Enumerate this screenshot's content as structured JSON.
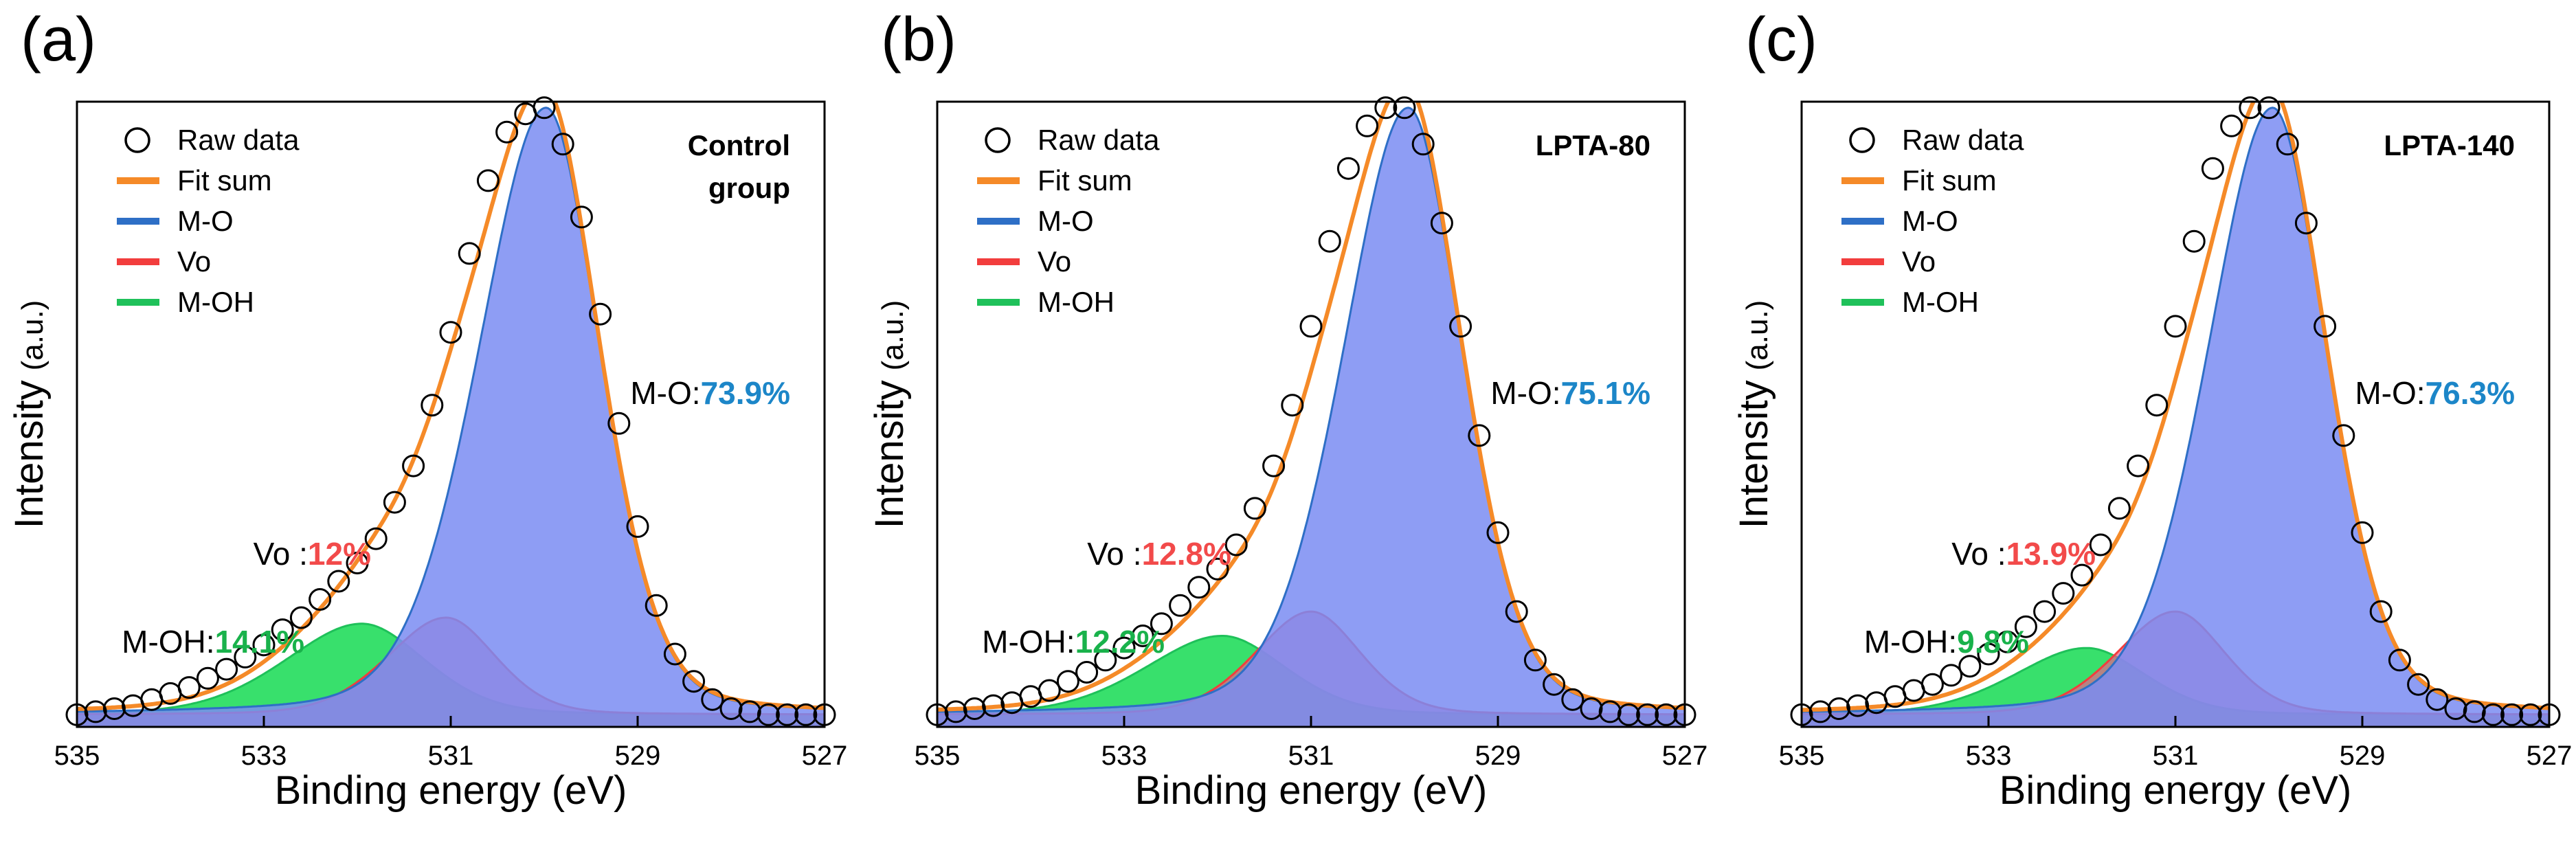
{
  "figure": {
    "panels": [
      {
        "id": "a",
        "panel_label": "(a)",
        "sample_label_lines": [
          "Control",
          "group"
        ]
      },
      {
        "id": "b",
        "panel_label": "(b)",
        "sample_label_lines": [
          "LPTA-80"
        ]
      },
      {
        "id": "c",
        "panel_label": "(c)",
        "sample_label_lines": [
          "LPTA-140"
        ]
      }
    ]
  },
  "chart_data": [
    {
      "type": "line",
      "title": "Control group",
      "xlabel": "Binding energy (eV)",
      "ylabel_main": "Intensity",
      "ylabel_unit": "(a.u.)",
      "xlim": [
        535,
        527
      ],
      "ylim": [
        0,
        1.03
      ],
      "x_ticks": [
        "535",
        "533",
        "531",
        "529",
        "527"
      ],
      "legend": [
        "Raw data",
        "Fit sum",
        "M-O",
        "Vo",
        "M-OH"
      ],
      "colors": {
        "raw": "#000000",
        "fit": "#f58a28",
        "mo_line": "#2e6fc6",
        "mo_fill": "#7a8cf2",
        "vo_line": "#f23d3d",
        "vo_fill": "#e8608a",
        "moh_line": "#1fc15a",
        "moh_fill": "#22dd5c",
        "mo_pct": "#1c86c8",
        "vo_pct": "#f24a4a",
        "moh_pct": "#19b24b"
      },
      "annotations": [
        {
          "name": "M-O",
          "prefix": "M-O:",
          "value": "73.9%"
        },
        {
          "name": "Vo",
          "prefix": "Vo :",
          "value": "12%"
        },
        {
          "name": "M-OH",
          "prefix": "M-OH:",
          "value": "14.1%"
        }
      ],
      "peaks": [
        {
          "name": "M-O",
          "center": 529.98,
          "height": 1.0,
          "width_low_be": 0.6,
          "width_high_be": 0.75
        },
        {
          "name": "Vo",
          "center": 531.05,
          "height": 0.16,
          "width_low_be": 0.55,
          "width_high_be": 0.65
        },
        {
          "name": "M-OH",
          "center": 531.95,
          "height": 0.15,
          "width_low_be": 0.7,
          "width_high_be": 0.85
        }
      ],
      "baseline": 0.02,
      "raw_x": [
        535.0,
        534.8,
        534.6,
        534.4,
        534.2,
        534.0,
        533.8,
        533.6,
        533.4,
        533.2,
        533.0,
        532.8,
        532.6,
        532.4,
        532.2,
        532.0,
        531.8,
        531.6,
        531.4,
        531.2,
        531.0,
        530.8,
        530.6,
        530.4,
        530.2,
        530.0,
        529.8,
        529.6,
        529.4,
        529.2,
        529.0,
        528.8,
        528.6,
        528.4,
        528.2,
        528.0,
        527.8,
        527.6,
        527.4,
        527.2,
        527.0
      ],
      "raw_y": [
        0.02,
        0.025,
        0.03,
        0.035,
        0.045,
        0.055,
        0.065,
        0.08,
        0.095,
        0.115,
        0.135,
        0.16,
        0.18,
        0.21,
        0.24,
        0.27,
        0.31,
        0.37,
        0.43,
        0.53,
        0.65,
        0.78,
        0.9,
        0.98,
        1.01,
        1.02,
        0.96,
        0.84,
        0.68,
        0.5,
        0.33,
        0.2,
        0.12,
        0.075,
        0.045,
        0.03,
        0.025,
        0.02,
        0.02,
        0.02,
        0.02
      ]
    },
    {
      "type": "line",
      "title": "LPTA-80",
      "xlabel": "Binding energy (eV)",
      "ylabel_main": "Intensity",
      "ylabel_unit": "(a.u.)",
      "xlim": [
        535,
        527
      ],
      "ylim": [
        0,
        1.03
      ],
      "x_ticks": [
        "535",
        "533",
        "531",
        "529",
        "527"
      ],
      "legend": [
        "Raw data",
        "Fit sum",
        "M-O",
        "Vo",
        "M-OH"
      ],
      "colors": {
        "raw": "#000000",
        "fit": "#f58a28",
        "mo_line": "#2e6fc6",
        "mo_fill": "#7a8cf2",
        "vo_line": "#f23d3d",
        "vo_fill": "#e8608a",
        "moh_line": "#1fc15a",
        "moh_fill": "#22dd5c",
        "mo_pct": "#1c86c8",
        "vo_pct": "#f24a4a",
        "moh_pct": "#19b24b"
      },
      "annotations": [
        {
          "name": "M-O",
          "prefix": "M-O:",
          "value": "75.1%"
        },
        {
          "name": "Vo",
          "prefix": "Vo :",
          "value": "12.8%"
        },
        {
          "name": "M-OH",
          "prefix": "M-OH:",
          "value": "12.2%"
        }
      ],
      "peaks": [
        {
          "name": "M-O",
          "center": 529.96,
          "height": 1.0,
          "width_low_be": 0.6,
          "width_high_be": 0.72
        },
        {
          "name": "Vo",
          "center": 531.0,
          "height": 0.17,
          "width_low_be": 0.55,
          "width_high_be": 0.62
        },
        {
          "name": "M-OH",
          "center": 531.95,
          "height": 0.13,
          "width_low_be": 0.7,
          "width_high_be": 0.85
        }
      ],
      "baseline": 0.02,
      "raw_x": [
        535.0,
        534.8,
        534.6,
        534.4,
        534.2,
        534.0,
        533.8,
        533.6,
        533.4,
        533.2,
        533.0,
        532.8,
        532.6,
        532.4,
        532.2,
        532.0,
        531.8,
        531.6,
        531.4,
        531.2,
        531.0,
        530.8,
        530.6,
        530.4,
        530.2,
        530.0,
        529.8,
        529.6,
        529.4,
        529.2,
        529.0,
        528.8,
        528.6,
        528.4,
        528.2,
        528.0,
        527.8,
        527.6,
        527.4,
        527.2,
        527.0
      ],
      "raw_y": [
        0.02,
        0.025,
        0.03,
        0.035,
        0.04,
        0.05,
        0.06,
        0.075,
        0.09,
        0.11,
        0.13,
        0.15,
        0.17,
        0.2,
        0.23,
        0.26,
        0.3,
        0.36,
        0.43,
        0.53,
        0.66,
        0.8,
        0.92,
        0.99,
        1.02,
        1.02,
        0.96,
        0.83,
        0.66,
        0.48,
        0.32,
        0.19,
        0.11,
        0.07,
        0.045,
        0.03,
        0.025,
        0.02,
        0.02,
        0.02,
        0.02
      ]
    },
    {
      "type": "line",
      "title": "LPTA-140",
      "xlabel": "Binding energy (eV)",
      "ylabel_main": "Intensity",
      "ylabel_unit": "(a.u.)",
      "xlim": [
        535,
        527
      ],
      "ylim": [
        0,
        1.03
      ],
      "x_ticks": [
        "535",
        "533",
        "531",
        "529",
        "527"
      ],
      "legend": [
        "Raw data",
        "Fit sum",
        "M-O",
        "Vo",
        "M-OH"
      ],
      "colors": {
        "raw": "#000000",
        "fit": "#f58a28",
        "mo_line": "#2e6fc6",
        "mo_fill": "#7a8cf2",
        "vo_line": "#f23d3d",
        "vo_fill": "#e8608a",
        "moh_line": "#1fc15a",
        "moh_fill": "#22dd5c",
        "mo_pct": "#1c86c8",
        "vo_pct": "#f24a4a",
        "moh_pct": "#19b24b"
      },
      "annotations": [
        {
          "name": "M-O",
          "prefix": "M-O:",
          "value": "76.3%"
        },
        {
          "name": "Vo",
          "prefix": "Vo :",
          "value": "13.9%"
        },
        {
          "name": "M-OH",
          "prefix": "M-OH:",
          "value": "9.8%"
        }
      ],
      "peaks": [
        {
          "name": "M-O",
          "center": 529.96,
          "height": 1.0,
          "width_low_be": 0.6,
          "width_high_be": 0.72
        },
        {
          "name": "Vo",
          "center": 531.0,
          "height": 0.17,
          "width_low_be": 0.55,
          "width_high_be": 0.65
        },
        {
          "name": "M-OH",
          "center": 531.95,
          "height": 0.11,
          "width_low_be": 0.65,
          "width_high_be": 0.8
        }
      ],
      "baseline": 0.02,
      "raw_x": [
        535.0,
        534.8,
        534.6,
        534.4,
        534.2,
        534.0,
        533.8,
        533.6,
        533.4,
        533.2,
        533.0,
        532.8,
        532.6,
        532.4,
        532.2,
        532.0,
        531.8,
        531.6,
        531.4,
        531.2,
        531.0,
        530.8,
        530.6,
        530.4,
        530.2,
        530.0,
        529.8,
        529.6,
        529.4,
        529.2,
        529.0,
        528.8,
        528.6,
        528.4,
        528.2,
        528.0,
        527.8,
        527.6,
        527.4,
        527.2,
        527.0
      ],
      "raw_y": [
        0.02,
        0.025,
        0.03,
        0.035,
        0.04,
        0.05,
        0.06,
        0.07,
        0.085,
        0.1,
        0.12,
        0.14,
        0.165,
        0.19,
        0.22,
        0.25,
        0.3,
        0.36,
        0.43,
        0.53,
        0.66,
        0.8,
        0.92,
        0.99,
        1.02,
        1.02,
        0.96,
        0.83,
        0.66,
        0.48,
        0.32,
        0.19,
        0.11,
        0.07,
        0.045,
        0.03,
        0.025,
        0.02,
        0.02,
        0.02,
        0.02
      ]
    }
  ]
}
